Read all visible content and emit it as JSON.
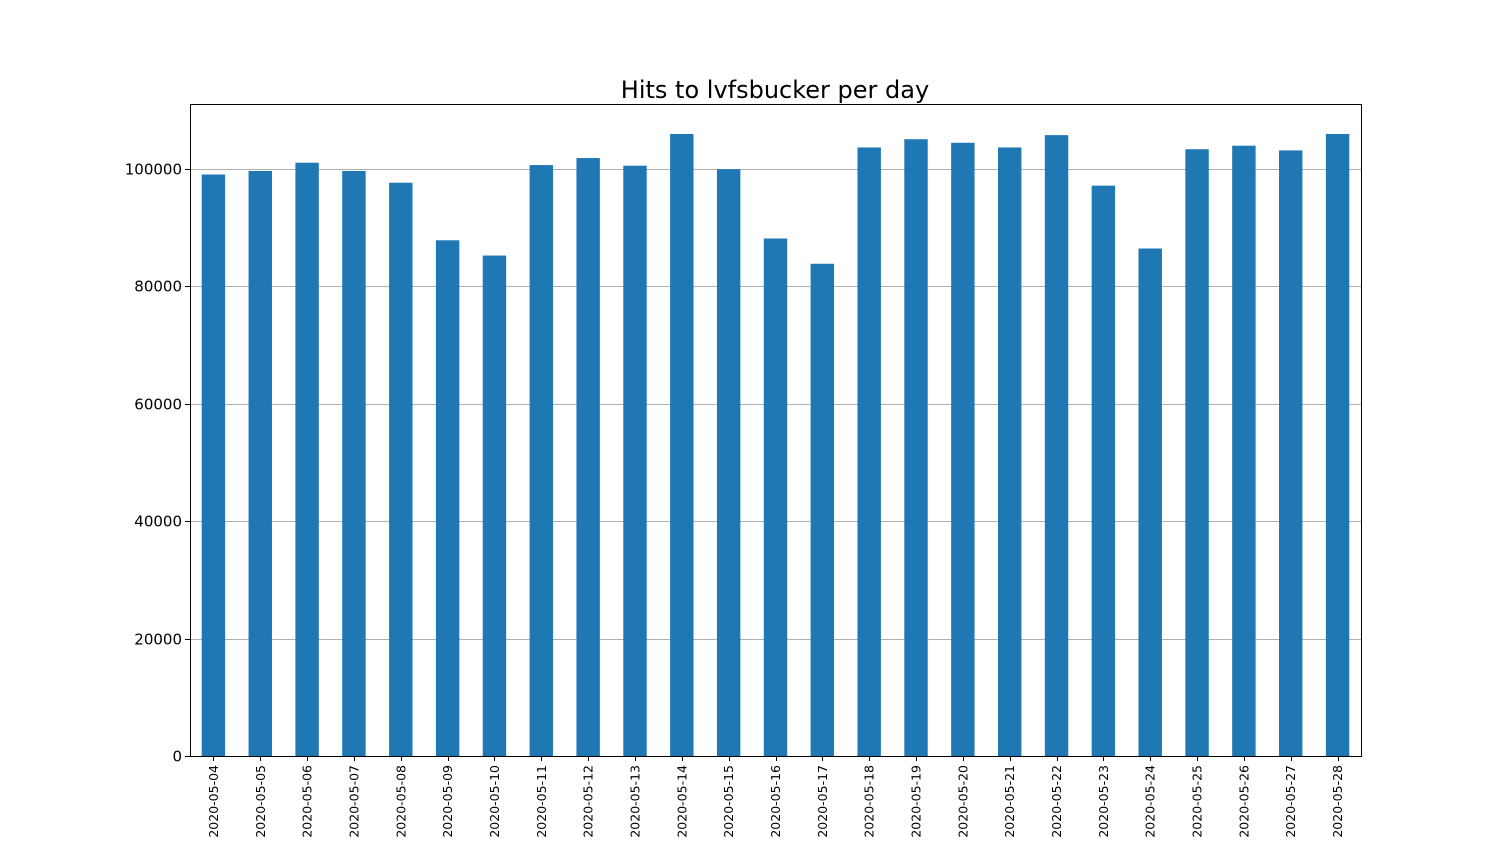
{
  "chart_data": {
    "type": "bar",
    "title": "Hits to lvfsbucker per day",
    "xlabel": "",
    "ylabel": "",
    "categories": [
      "2020-05-04",
      "2020-05-05",
      "2020-05-06",
      "2020-05-07",
      "2020-05-08",
      "2020-05-09",
      "2020-05-10",
      "2020-05-11",
      "2020-05-12",
      "2020-05-13",
      "2020-05-14",
      "2020-05-15",
      "2020-05-16",
      "2020-05-17",
      "2020-05-18",
      "2020-05-19",
      "2020-05-20",
      "2020-05-21",
      "2020-05-22",
      "2020-05-23",
      "2020-05-24",
      "2020-05-25",
      "2020-05-26",
      "2020-05-27",
      "2020-05-28"
    ],
    "values": [
      99000,
      99600,
      101000,
      99600,
      97600,
      87800,
      85200,
      100600,
      101800,
      100500,
      105900,
      99900,
      88100,
      83800,
      103600,
      105000,
      104400,
      103600,
      105700,
      97100,
      86400,
      103300,
      103900,
      103100,
      105900
    ],
    "ylim": [
      0,
      111000
    ],
    "yticks": [
      0,
      20000,
      40000,
      60000,
      80000,
      100000
    ],
    "ytick_labels": [
      "0",
      "20000",
      "40000",
      "60000",
      "80000",
      "100000"
    ],
    "grid": "horizontal",
    "legend": "none",
    "colors": {
      "bar": "#1f77b4",
      "grid": "#b0b0b0",
      "axis": "#000000"
    }
  }
}
